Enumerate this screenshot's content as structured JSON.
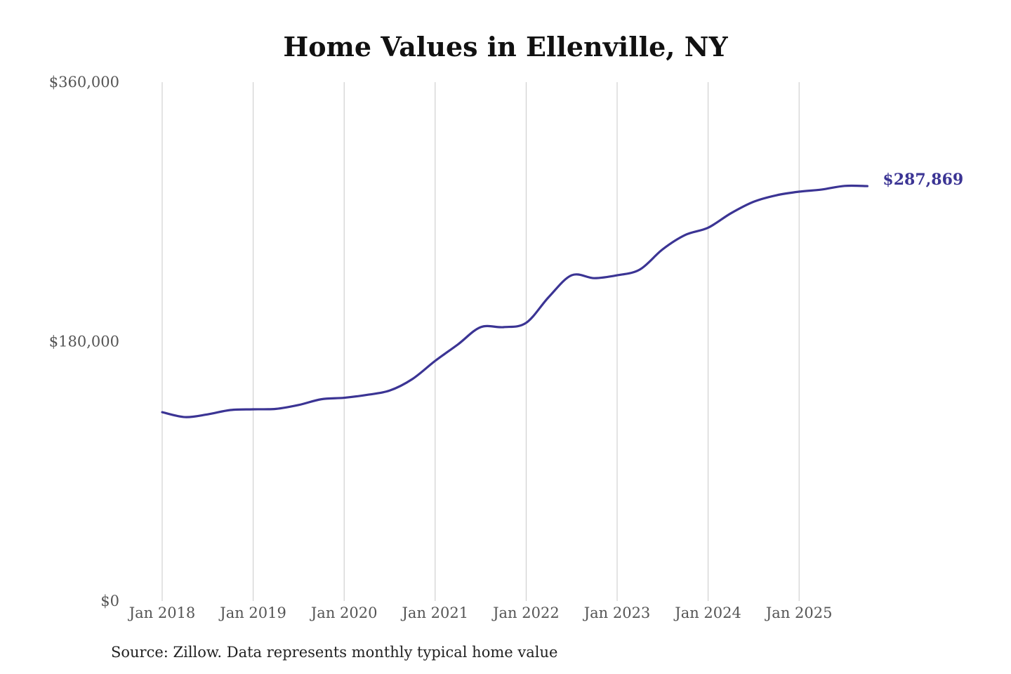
{
  "chart_data": {
    "type": "line",
    "title": "Home Values in Ellenville, NY",
    "source": "Source: Zillow. Data represents monthly typical home value",
    "xlabel": "",
    "ylabel": "",
    "ylim": [
      0,
      360000
    ],
    "y_ticks": [
      0,
      180000,
      360000
    ],
    "y_tick_labels": [
      "$0",
      "$180,000",
      "$360,000"
    ],
    "x_tick_labels": [
      "Jan 2018",
      "Jan 2019",
      "Jan 2020",
      "Jan 2021",
      "Jan 2022",
      "Jan 2023",
      "Jan 2024",
      "Jan 2025"
    ],
    "x_ticks": [
      "2018-01",
      "2019-01",
      "2020-01",
      "2021-01",
      "2022-01",
      "2023-01",
      "2024-01",
      "2025-01"
    ],
    "grid": "vertical",
    "line_color": "#3b3494",
    "end_label": "$287,869",
    "series": [
      {
        "x": [
          "2018-01",
          "2018-04",
          "2018-07",
          "2018-10",
          "2019-01",
          "2019-04",
          "2019-07",
          "2019-10",
          "2020-01",
          "2020-04",
          "2020-07",
          "2020-10",
          "2021-01",
          "2021-04",
          "2021-07",
          "2021-10",
          "2022-01",
          "2022-04",
          "2022-07",
          "2022-10",
          "2023-01",
          "2023-04",
          "2023-07",
          "2023-10",
          "2024-01",
          "2024-04",
          "2024-07",
          "2024-10",
          "2025-01",
          "2025-04",
          "2025-07",
          "2025-10"
        ],
        "values": [
          131000,
          127600,
          129500,
          132500,
          133000,
          133300,
          136000,
          140000,
          141000,
          143000,
          146000,
          154000,
          166600,
          178000,
          190000,
          190000,
          193000,
          211000,
          226000,
          224000,
          226000,
          230000,
          244000,
          254000,
          259000,
          269000,
          277000,
          281500,
          284000,
          285500,
          288000,
          287869
        ]
      }
    ]
  }
}
